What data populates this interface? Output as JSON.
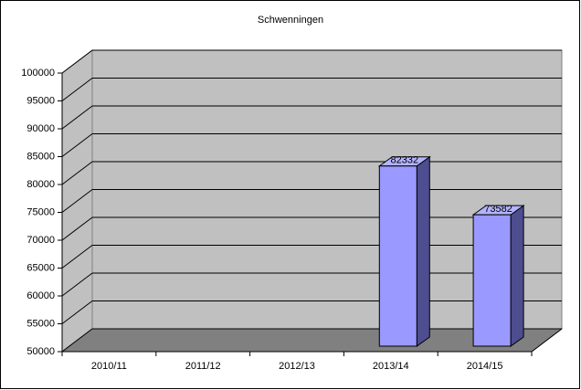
{
  "chart_data": {
    "type": "bar3d",
    "title": "Schwenningen",
    "categories": [
      "2010/11",
      "2011/12",
      "2012/13",
      "2013/14",
      "2014/15"
    ],
    "values": [
      null,
      null,
      null,
      82332,
      73582
    ],
    "color": "#9999ff",
    "ylim": [
      50000,
      100000
    ],
    "yticks": [
      50000,
      55000,
      60000,
      65000,
      70000,
      75000,
      80000,
      85000,
      90000,
      95000,
      100000
    ],
    "grid": true
  }
}
